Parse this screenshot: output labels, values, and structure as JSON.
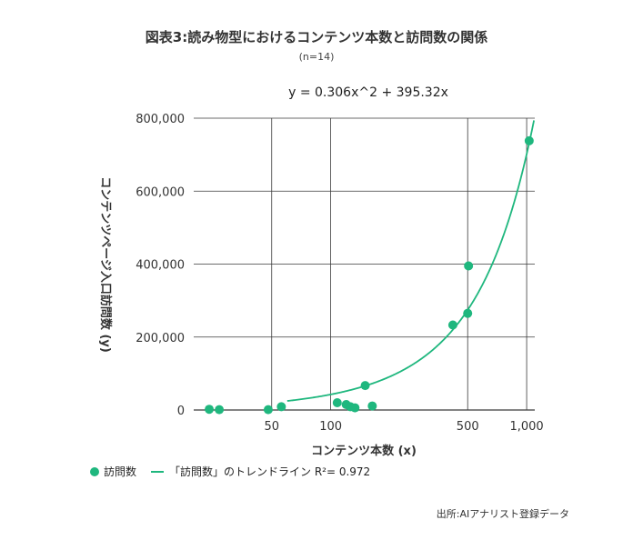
{
  "title": "図表3:読み物型におけるコンテンツ本数と訪問数の関係",
  "subtitle": "(n=14)",
  "source": "出所:AIアナリスト登録データ",
  "chart_data": {
    "type": "scatter",
    "equation": "y = 0.306x^2 + 395.32x",
    "xlabel": "コンテンツ本数 (x)",
    "ylabel": "コンテンツページ入口訪問数 (y)",
    "x_scale": "log",
    "xlim": [
      20,
      1100
    ],
    "ylim": [
      0,
      800000
    ],
    "x_ticks": [
      {
        "value": 50,
        "label": "50"
      },
      {
        "value": 100,
        "label": "100"
      },
      {
        "value": 500,
        "label": "500"
      },
      {
        "value": 1000,
        "label": "1,000"
      }
    ],
    "y_ticks": [
      {
        "value": 0,
        "label": "0"
      },
      {
        "value": 200000,
        "label": "200,000"
      },
      {
        "value": 400000,
        "label": "400,000"
      },
      {
        "value": 600000,
        "label": "600,000"
      },
      {
        "value": 800000,
        "label": "800,000"
      }
    ],
    "grid": true,
    "legend_position": "bottom-left",
    "series": [
      {
        "name": "訪問数",
        "kind": "scatter",
        "color": "#1fb77e",
        "points": [
          {
            "x": 24,
            "y": 2000
          },
          {
            "x": 27,
            "y": 1000
          },
          {
            "x": 48,
            "y": 1000
          },
          {
            "x": 56,
            "y": 9000
          },
          {
            "x": 108,
            "y": 20000
          },
          {
            "x": 120,
            "y": 15000
          },
          {
            "x": 126,
            "y": 9000
          },
          {
            "x": 133,
            "y": 6000
          },
          {
            "x": 150,
            "y": 67000
          },
          {
            "x": 163,
            "y": 11000
          },
          {
            "x": 420,
            "y": 233000
          },
          {
            "x": 500,
            "y": 265000
          },
          {
            "x": 505,
            "y": 395000
          },
          {
            "x": 1030,
            "y": 738000
          }
        ]
      },
      {
        "name": "「訪問数」のトレンドライン R²= 0.972",
        "kind": "trendline",
        "color": "#1fb77e",
        "coefficients": {
          "a": 0.306,
          "b": 395.32
        }
      }
    ]
  }
}
